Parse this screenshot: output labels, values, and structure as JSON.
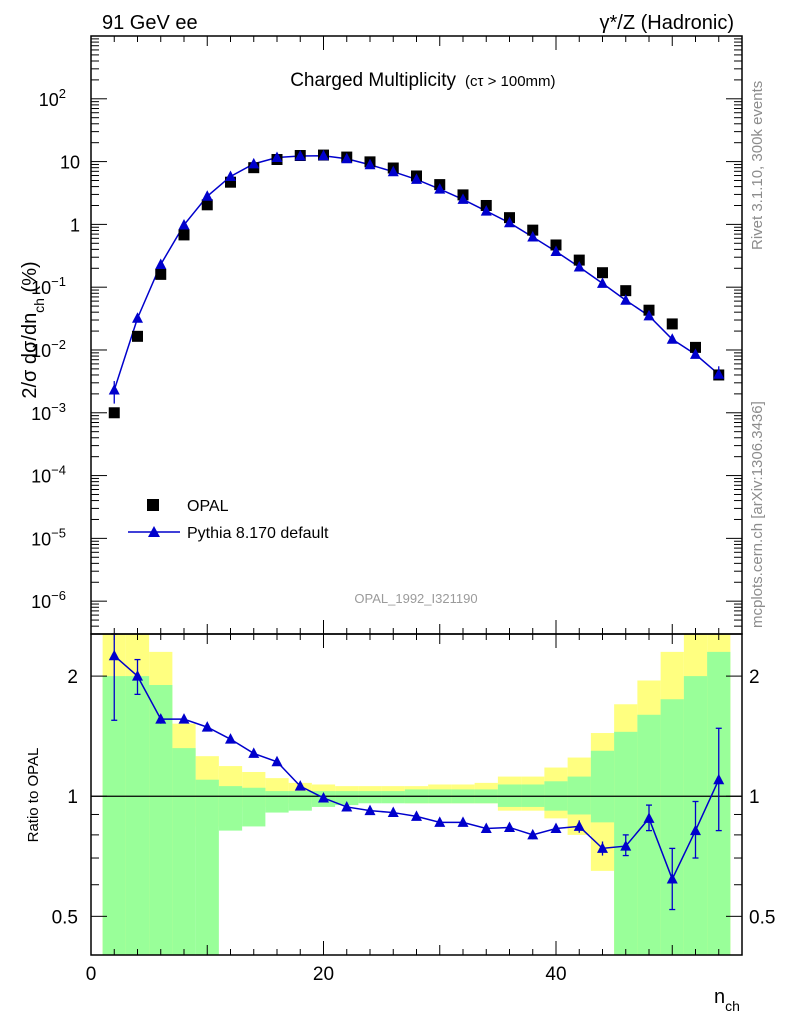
{
  "header": {
    "left": "91 GeV ee",
    "right": "γ*/Z (Hadronic)"
  },
  "side_labels": {
    "rivet": "Rivet 3.1.10,  300k events",
    "mcplots": "mcplots.cern.ch [arXiv:1306.3436]"
  },
  "chart_data": [
    {
      "type": "scatter",
      "title": "Charged Multiplicity",
      "title_suffix": "(cτ > 100mm)",
      "watermark": "OPAL_1992_I321190",
      "ylabel": "2/σ dσ/dn_ch (%)",
      "ylabel_parts": [
        "2/σ dσ/dn",
        "ch",
        " (%)"
      ],
      "yscale": "log",
      "ylim": [
        3e-07,
        1000
      ],
      "xlim": [
        0,
        56
      ],
      "ytick_values": [
        1e-06,
        1e-05,
        0.0001,
        0.001,
        0.01,
        0.1,
        1,
        10,
        100
      ],
      "ytick_labels": [
        {
          "base": "10",
          "exp": "−6"
        },
        {
          "base": "10",
          "exp": "−5"
        },
        {
          "base": "10",
          "exp": "−4"
        },
        {
          "base": "10",
          "exp": "−3"
        },
        {
          "base": "10",
          "exp": "−2"
        },
        {
          "base": "10",
          "exp": "−1"
        },
        {
          "base": "1",
          "exp": ""
        },
        {
          "base": "10",
          "exp": ""
        },
        {
          "base": "10",
          "exp": "2"
        }
      ],
      "legend_position": "lower-left",
      "series": [
        {
          "name": "OPAL",
          "marker": "square",
          "color": "#000000",
          "x": [
            2,
            4,
            6,
            8,
            10,
            12,
            14,
            16,
            18,
            20,
            22,
            24,
            26,
            28,
            30,
            32,
            34,
            36,
            38,
            40,
            42,
            44,
            46,
            48,
            50,
            52,
            54
          ],
          "y": [
            0.001,
            0.0165,
            0.16,
            0.68,
            2.05,
            4.7,
            8.0,
            10.8,
            12.5,
            12.7,
            11.8,
            9.9,
            7.9,
            5.9,
            4.3,
            2.95,
            2.0,
            1.28,
            0.81,
            0.47,
            0.27,
            0.17,
            0.088,
            0.043,
            0.026,
            0.011,
            0.004
          ]
        },
        {
          "name": "Pythia 8.170 default",
          "marker": "triangle",
          "color": "#0000cc",
          "x": [
            2,
            4,
            6,
            8,
            10,
            12,
            14,
            16,
            18,
            20,
            22,
            24,
            26,
            28,
            30,
            32,
            34,
            36,
            38,
            40,
            42,
            44,
            46,
            48,
            50,
            52,
            54
          ],
          "y": [
            0.0023,
            0.032,
            0.23,
            0.98,
            2.8,
            5.8,
            9.2,
            11.6,
            12.3,
            12.4,
            11.1,
            8.9,
            6.9,
            5.2,
            3.65,
            2.5,
            1.63,
            1.06,
            0.63,
            0.37,
            0.21,
            0.115,
            0.062,
            0.035,
            0.0148,
            0.0085,
            0.0041
          ],
          "err_low": [
            0.0009,
            0,
            0,
            0,
            0,
            0,
            0,
            0,
            0,
            0,
            0,
            0,
            0,
            0,
            0,
            0,
            0,
            0,
            0,
            0,
            0,
            0,
            0,
            0,
            0,
            0,
            0.0008
          ],
          "err_high": [
            0.0009,
            0,
            0,
            0,
            0,
            0,
            0,
            0,
            0,
            0,
            0,
            0,
            0,
            0,
            0,
            0,
            0,
            0,
            0,
            0,
            0,
            0,
            0,
            0,
            0,
            0,
            0.0014
          ]
        }
      ]
    },
    {
      "type": "line",
      "ylabel": "Ratio to OPAL",
      "xlabel": "n_ch",
      "xlabel_parts": [
        "n",
        "ch"
      ],
      "yscale": "log",
      "ylim": [
        0.4,
        2.55
      ],
      "xlim": [
        0,
        56
      ],
      "xticks": [
        0,
        20,
        40
      ],
      "yticks": [
        0.5,
        1,
        2
      ],
      "reference_line": 1,
      "bands": {
        "edges": [
          1,
          3,
          5,
          7,
          9,
          11,
          13,
          15,
          17,
          19,
          21,
          23,
          25,
          27,
          29,
          31,
          33,
          35,
          37,
          39,
          41,
          43,
          45,
          47,
          49,
          51,
          53,
          55
        ],
        "inner": {
          "color": "#99ff99",
          "low": [
            0.2,
            0.2,
            0.2,
            0.2,
            0.2,
            0.82,
            0.84,
            0.91,
            0.92,
            0.94,
            0.95,
            0.96,
            0.96,
            0.96,
            0.96,
            0.96,
            0.96,
            0.94,
            0.94,
            0.92,
            0.9,
            0.86,
            0.4,
            0.4,
            0.4,
            0.4,
            0.4
          ],
          "high": [
            2.0,
            2.0,
            1.9,
            1.32,
            1.1,
            1.06,
            1.05,
            1.03,
            1.03,
            1.03,
            1.03,
            1.03,
            1.03,
            1.04,
            1.04,
            1.04,
            1.04,
            1.07,
            1.07,
            1.09,
            1.12,
            1.3,
            1.45,
            1.6,
            1.75,
            2.0,
            2.3
          ]
        },
        "outer": {
          "color": "#ffff80",
          "low": [
            0.2,
            0.2,
            0.2,
            0.75,
            0.84,
            0.92,
            0.94,
            0.94,
            0.96,
            0.96,
            0.97,
            0.97,
            0.97,
            0.96,
            0.96,
            0.96,
            0.96,
            0.92,
            0.92,
            0.88,
            0.8,
            0.65,
            0.4,
            0.4,
            0.4,
            0.4,
            0.4
          ],
          "high": [
            3.0,
            3.0,
            2.3,
            1.52,
            1.26,
            1.19,
            1.15,
            1.11,
            1.08,
            1.07,
            1.06,
            1.06,
            1.06,
            1.06,
            1.07,
            1.07,
            1.08,
            1.12,
            1.12,
            1.18,
            1.25,
            1.44,
            1.7,
            1.95,
            2.3,
            3.0,
            3.0
          ]
        }
      },
      "series": [
        {
          "name": "Pythia 8.170 default",
          "color": "#0000cc",
          "x": [
            2,
            4,
            6,
            8,
            10,
            12,
            14,
            16,
            18,
            20,
            22,
            24,
            26,
            28,
            30,
            32,
            34,
            36,
            38,
            40,
            42,
            44,
            46,
            48,
            50,
            52,
            54
          ],
          "y": [
            2.25,
            2.0,
            1.56,
            1.56,
            1.49,
            1.39,
            1.28,
            1.22,
            1.06,
            0.99,
            0.94,
            0.92,
            0.91,
            0.89,
            0.86,
            0.86,
            0.83,
            0.835,
            0.8,
            0.83,
            0.84,
            0.74,
            0.75,
            0.88,
            0.62,
            0.82,
            1.1
          ],
          "err_low": [
            0.7,
            0.2,
            0.04,
            0.03,
            0.02,
            0.02,
            0.01,
            0.01,
            0.01,
            0.01,
            0.01,
            0.01,
            0.01,
            0.01,
            0.01,
            0.01,
            0.01,
            0.01,
            0.02,
            0.02,
            0.03,
            0.03,
            0.04,
            0.06,
            0.1,
            0.12,
            0.28
          ],
          "err_high": [
            0.7,
            0.2,
            0.04,
            0.03,
            0.02,
            0.02,
            0.01,
            0.01,
            0.01,
            0.01,
            0.01,
            0.01,
            0.01,
            0.01,
            0.01,
            0.01,
            0.01,
            0.01,
            0.02,
            0.02,
            0.03,
            0.03,
            0.05,
            0.07,
            0.12,
            0.15,
            0.38
          ]
        }
      ]
    }
  ]
}
